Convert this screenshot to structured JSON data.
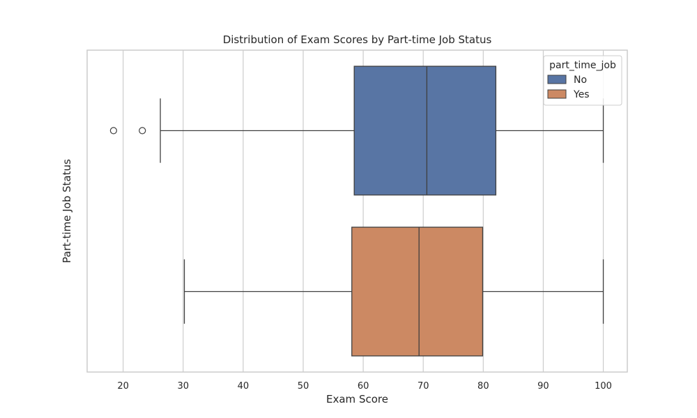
{
  "chart_data": {
    "type": "box",
    "orientation": "horizontal",
    "title": "Distribution of Exam Scores by Part-time Job Status",
    "xlabel": "Exam Score",
    "ylabel": "Part-time Job Status",
    "xlim": [
      14,
      104
    ],
    "xticks": [
      20,
      30,
      40,
      50,
      60,
      70,
      80,
      90,
      100
    ],
    "grid": true,
    "legend": {
      "title": "part_time_job",
      "placement": "top-right"
    },
    "series": [
      {
        "name": "No",
        "color": "#5875a4",
        "whisker_low": 26.2,
        "q1": 58.5,
        "median": 70.6,
        "q3": 82.1,
        "whisker_high": 100,
        "outliers": [
          18.4,
          23.2
        ]
      },
      {
        "name": "Yes",
        "color": "#cc8963",
        "whisker_low": 30.2,
        "q1": 58.1,
        "median": 69.3,
        "q3": 79.9,
        "whisker_high": 100,
        "outliers": []
      }
    ]
  }
}
